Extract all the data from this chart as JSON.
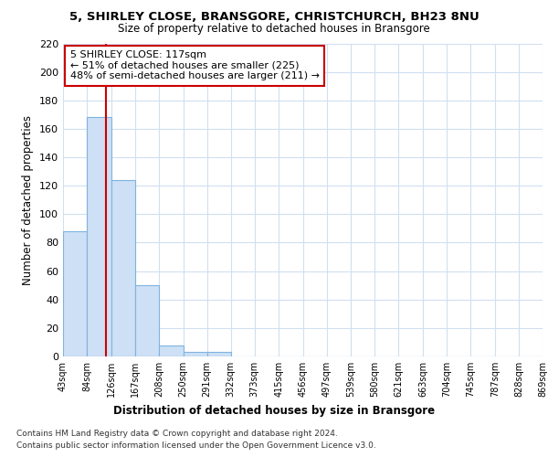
{
  "title": "5, SHIRLEY CLOSE, BRANSGORE, CHRISTCHURCH, BH23 8NU",
  "subtitle": "Size of property relative to detached houses in Bransgore",
  "xlabel": "Distribution of detached houses by size in Bransgore",
  "ylabel": "Number of detached properties",
  "bar_edges": [
    43,
    84,
    126,
    167,
    208,
    250,
    291,
    332,
    373,
    415,
    456,
    497,
    539,
    580,
    621,
    663,
    704,
    745,
    787,
    828,
    869
  ],
  "bar_heights": [
    88,
    168,
    124,
    50,
    8,
    3,
    3,
    0,
    0,
    0,
    0,
    0,
    0,
    0,
    0,
    0,
    0,
    0,
    0,
    0
  ],
  "bar_color": "#cde0f5",
  "bar_edge_color": "#7fb3e0",
  "property_size": 117,
  "property_line_color": "#cc0000",
  "annotation_text": "5 SHIRLEY CLOSE: 117sqm\n← 51% of detached houses are smaller (225)\n48% of semi-detached houses are larger (211) →",
  "annotation_box_color": "#ffffff",
  "annotation_box_edge_color": "#cc0000",
  "ylim": [
    0,
    220
  ],
  "yticks": [
    0,
    20,
    40,
    60,
    80,
    100,
    120,
    140,
    160,
    180,
    200,
    220
  ],
  "footnote1": "Contains HM Land Registry data © Crown copyright and database right 2024.",
  "footnote2": "Contains public sector information licensed under the Open Government Licence v3.0.",
  "bg_color": "#ffffff",
  "plot_bg_color": "#ffffff",
  "grid_color": "#d0dff0"
}
